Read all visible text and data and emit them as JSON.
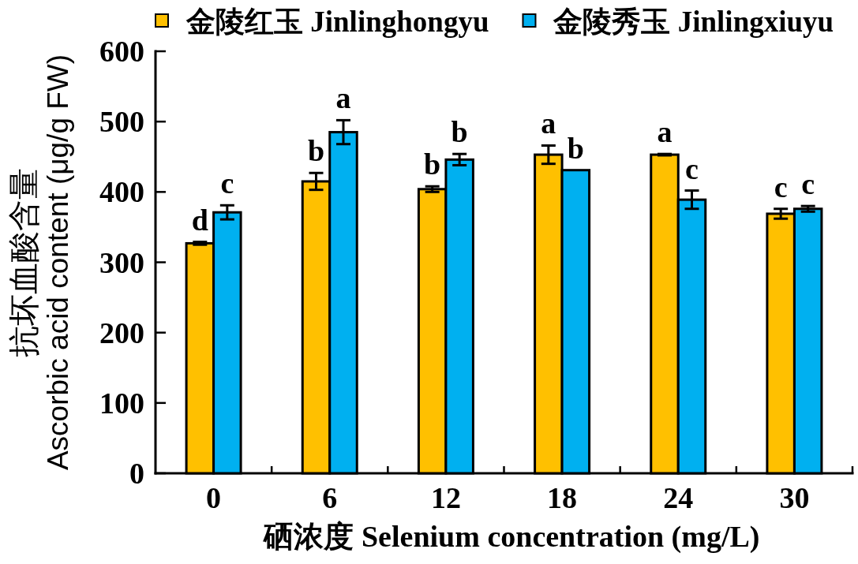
{
  "chart_data": {
    "type": "bar",
    "categories": [
      "0",
      "6",
      "12",
      "18",
      "24",
      "30"
    ],
    "xlabel": "硒浓度 Selenium concentration (mg/L)",
    "ylabel": "抗坏血酸含量\nAscorbic acid content (μg/g FW)",
    "ylim": [
      0,
      600
    ],
    "yticks": [
      0,
      100,
      200,
      300,
      400,
      500,
      600
    ],
    "legend": "top",
    "grid": false,
    "series": [
      {
        "name": "金陵红玉 Jinlinghongyu",
        "color": "#ffc000",
        "values": [
          327,
          415,
          404,
          453,
          453,
          369
        ],
        "errors": [
          2,
          12,
          4,
          13,
          1,
          7
        ],
        "value_labels": [
          "d",
          "b",
          "b",
          "a",
          "a",
          "c"
        ]
      },
      {
        "name": "金陵秀玉 Jinlingxiuyu",
        "color": "#00b0f0",
        "values": [
          371,
          485,
          446,
          431,
          389,
          376
        ],
        "errors": [
          10,
          17,
          8,
          null,
          13,
          4
        ],
        "value_labels": [
          "c",
          "a",
          "b",
          "b",
          "c",
          "c"
        ]
      }
    ]
  }
}
